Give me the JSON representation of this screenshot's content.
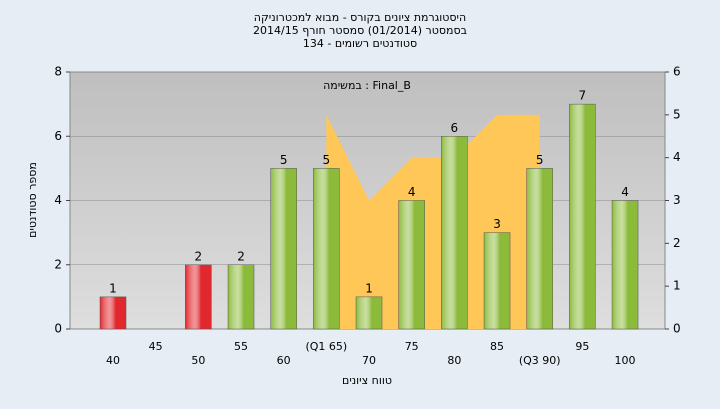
{
  "chart_data": {
    "type": "bar",
    "title": [
      "היסטוגרמת ציונים בקורס - מבוא למכטרוניקה",
      "בסמסטר (01/2014)  סמסטר חורף 2014/15",
      "סטודנטים רשומים - 134"
    ],
    "annotation": "במשימה : Final_B",
    "x_label": "טווח ציונים",
    "y_label": "מספר סטודנטים",
    "categories": [
      "40",
      "45",
      "50",
      "55",
      "60",
      "(Q1 65)",
      "70",
      "75",
      "80",
      "85",
      "(Q3 90)",
      "95",
      "100"
    ],
    "values": [
      1,
      null,
      2,
      2,
      5,
      5,
      1,
      4,
      6,
      3,
      5,
      7,
      4
    ],
    "bar_colors": [
      "#e0282e",
      "#e0282e",
      "#e0282e",
      "#8cbb3c",
      "#8cbb3c",
      "#8cbb3c",
      "#8cbb3c",
      "#8cbb3c",
      "#8cbb3c",
      "#8cbb3c",
      "#8cbb3c",
      "#8cbb3c",
      "#8cbb3c"
    ],
    "area": {
      "axis": "y2",
      "color": "#ffc658",
      "values": [
        null,
        null,
        null,
        null,
        null,
        5,
        3,
        4,
        4,
        5,
        5,
        null,
        null
      ]
    },
    "ylim": [
      0,
      8
    ],
    "yticks": [
      0,
      2,
      4,
      6,
      8
    ],
    "y2lim": [
      0,
      6
    ],
    "y2ticks": [
      0,
      1,
      2,
      3,
      4,
      5,
      6
    ],
    "grid": true
  }
}
